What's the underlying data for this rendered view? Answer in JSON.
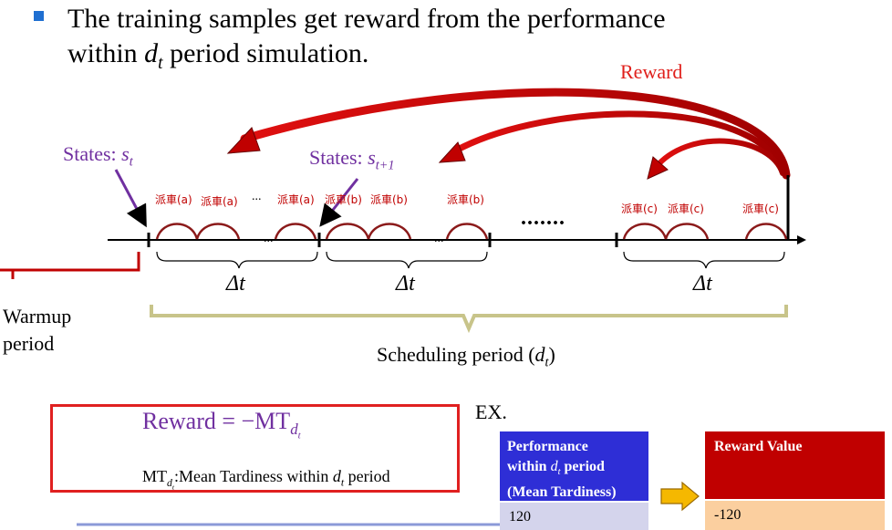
{
  "headline": {
    "line1": "The training samples get reward from the performance",
    "line2_pre": "within ",
    "line2_var": "d",
    "line2_sub": "t",
    "line2_post": " period simulation."
  },
  "reward_arrow_label": "Reward",
  "states": {
    "s_t": {
      "prefix": "States: ",
      "var": "s",
      "sub": "t"
    },
    "s_t1": {
      "prefix": "States: ",
      "var": "s",
      "sub": "t+1"
    }
  },
  "dispatch_labels": {
    "a1": "派車(a)",
    "a2": "派車(a)",
    "dots_a": "...",
    "a3": "派車(a)",
    "b1": "派車(b)",
    "b2": "派車(b)",
    "b3": "派車(b)",
    "c1": "派車(c)",
    "c2": "派車(c)",
    "c3": "派車(c)"
  },
  "timeline": {
    "inner_dots_1": "...",
    "inner_dots_2": "...",
    "ellipsis": "......."
  },
  "delta_t_labels": [
    "Δt",
    "Δt",
    "Δt"
  ],
  "warmup": {
    "line1": "Warmup",
    "line2": "period"
  },
  "scheduling_period": {
    "text": "Scheduling period (",
    "var": "d",
    "sub": "t",
    "close": ")"
  },
  "formula": {
    "lhs": "Reward = −MT",
    "sub_var": "d",
    "sub_sub": "t",
    "desc_pre": "MT",
    "desc_sub_var": "d",
    "desc_sub_sub": "t",
    "desc_mid": ":Mean Tardiness within ",
    "desc_var": "d",
    "desc_var_sub": "t",
    "desc_post": " period"
  },
  "ex_label": "EX.",
  "table": {
    "perf_header_line1": "Performance",
    "perf_header_line2_pre": "within ",
    "perf_header_line2_var": "d",
    "perf_header_line2_sub": "t",
    "perf_header_line2_post": " period",
    "perf_header_line3": "(Mean Tardiness)",
    "perf_value": "120",
    "reward_header": "Reward Value",
    "reward_value": "-120"
  },
  "colors": {
    "accent_red": "#e0201c",
    "dark_red": "#c00000",
    "purple": "#7030a0",
    "blue_header": "#2e2ed6",
    "lavender": "#d4d4ec",
    "peach": "#fbcf9f",
    "olive_bracket": "#c8c48a",
    "arrow_yellow": "#f5b800"
  }
}
